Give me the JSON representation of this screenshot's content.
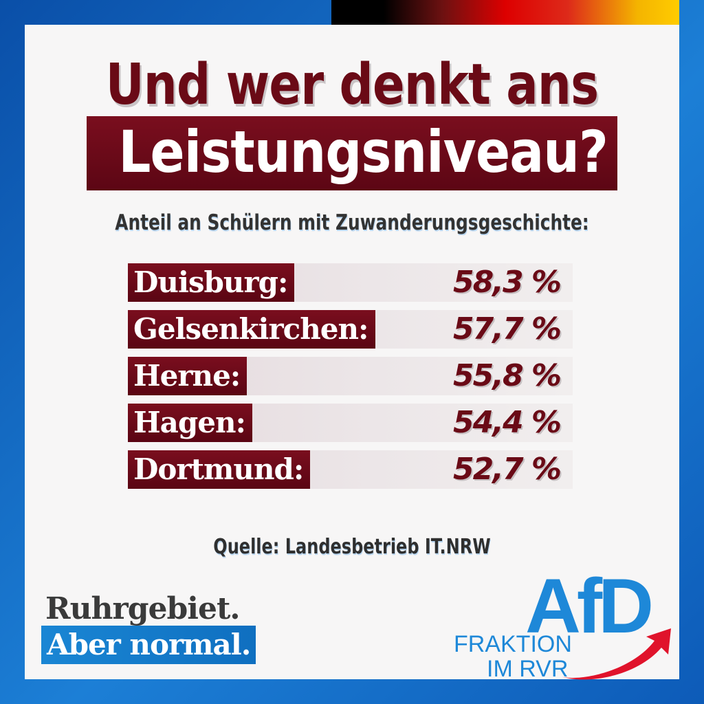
{
  "colors": {
    "dark_red": "#6a0a16",
    "blue": "#1e88d8",
    "background_blue": "#0a4fa8",
    "card": "#f7f6f6"
  },
  "headline": {
    "line1": "Und wer denkt ans",
    "line2": "Leistungsniveau?"
  },
  "subtitle": "Anteil an Schülern mit Zuwanderungsgeschichte:",
  "rows": [
    {
      "city": "Duisburg:",
      "value": "58,3 %"
    },
    {
      "city": "Gelsenkirchen:",
      "value": "57,7 %"
    },
    {
      "city": "Herne:",
      "value": "55,8 %"
    },
    {
      "city": "Hagen:",
      "value": "54,4 %"
    },
    {
      "city": "Dortmund:",
      "value": "52,7 %"
    }
  ],
  "source": "Quelle: Landesbetrieb IT.NRW",
  "slogan": {
    "line1": "Ruhrgebiet.",
    "line2": "Aber normal."
  },
  "logo": {
    "wordmark": "AfD",
    "line1": "FRAKTION",
    "line2": "IM RVR",
    "icon": "red-swoosh-arrow-icon"
  }
}
